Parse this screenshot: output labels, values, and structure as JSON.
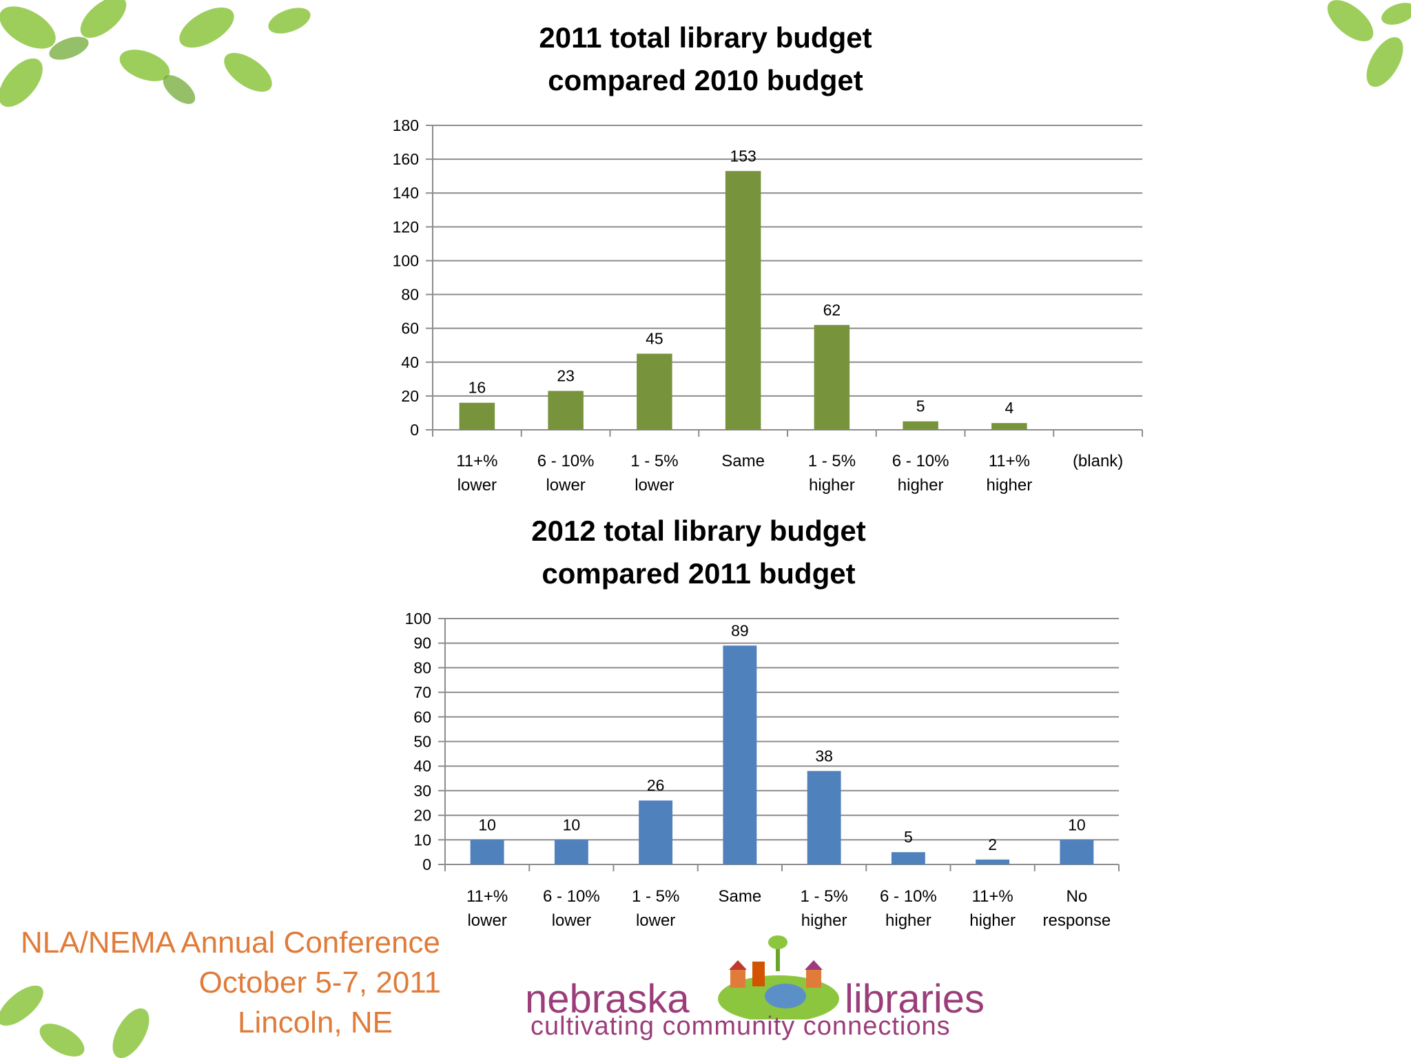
{
  "colors": {
    "chart1_bar": "#77933c",
    "chart2_bar": "#4f81bd",
    "leaf_green": "#8cc63f",
    "conference_orange": "#e07b39",
    "logo_purple": "#9b3d7a"
  },
  "chart_data": [
    {
      "type": "bar",
      "title_lines": [
        "2011 total library budget",
        "compared 2010 budget"
      ],
      "categories": [
        [
          "11+%",
          "lower"
        ],
        [
          "6 - 10%",
          "lower"
        ],
        [
          "1 - 5%",
          "lower"
        ],
        [
          "Same"
        ],
        [
          "1 - 5%",
          "higher"
        ],
        [
          "6 - 10%",
          "higher"
        ],
        [
          "11+%",
          "higher"
        ],
        [
          "(blank)"
        ]
      ],
      "values": [
        16,
        23,
        45,
        153,
        62,
        5,
        4,
        null
      ],
      "data_labels": [
        "16",
        "23",
        "45",
        "153",
        "62",
        "5",
        "4",
        ""
      ],
      "ylim": [
        0,
        180
      ],
      "yticks": [
        0,
        20,
        40,
        60,
        80,
        100,
        120,
        140,
        160,
        180
      ],
      "grid": true,
      "legend": "none"
    },
    {
      "type": "bar",
      "title_lines": [
        "2012 total library budget",
        "compared 2011 budget"
      ],
      "categories": [
        [
          "11+%",
          "lower"
        ],
        [
          "6 - 10%",
          "lower"
        ],
        [
          "1 - 5%",
          "lower"
        ],
        [
          "Same"
        ],
        [
          "1 - 5%",
          "higher"
        ],
        [
          "6 - 10%",
          "higher"
        ],
        [
          "11+%",
          "higher"
        ],
        [
          "No",
          "response"
        ]
      ],
      "values": [
        10,
        10,
        26,
        89,
        38,
        5,
        2,
        10
      ],
      "data_labels": [
        "10",
        "10",
        "26",
        "89",
        "38",
        "5",
        "2",
        "10"
      ],
      "ylim": [
        0,
        100
      ],
      "yticks": [
        0,
        10,
        20,
        30,
        40,
        50,
        60,
        70,
        80,
        90,
        100
      ],
      "grid": true,
      "legend": "none"
    }
  ],
  "conference": {
    "line1": "NLA/NEMA Annual Conference",
    "line2": "October 5-7, 2011",
    "line3": "Lincoln, NE"
  },
  "logo": {
    "word_left": "nebraska",
    "word_right": "libraries",
    "tagline": "cultivating community connections",
    "icon": "globe-town-icon"
  }
}
